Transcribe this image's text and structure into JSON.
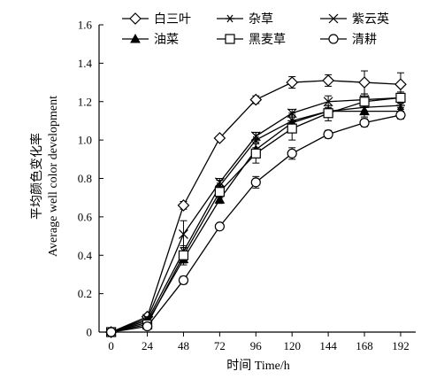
{
  "chart_data": {
    "type": "line",
    "x": [
      0,
      24,
      48,
      72,
      96,
      120,
      144,
      168,
      192
    ],
    "xlabel": "时间 Time/h",
    "ylabel": [
      "平均颜色变化率",
      "Average well color development"
    ],
    "xlim": [
      -8,
      202
    ],
    "ylim": [
      0,
      1.6
    ],
    "yticks": [
      "0",
      "0.2",
      "0.4",
      "0.6",
      "0.8",
      "1.0",
      "1.2",
      "1.4",
      "1.6"
    ],
    "xticks": [
      "0",
      "24",
      "48",
      "72",
      "96",
      "120",
      "144",
      "168",
      "192"
    ],
    "grid": false,
    "legend_position": "top",
    "series": [
      {
        "name": "白三叶",
        "marker": "diamond-open",
        "values": [
          0.0,
          0.08,
          0.66,
          1.01,
          1.21,
          1.3,
          1.31,
          1.3,
          1.29
        ],
        "err": [
          0.0,
          0.01,
          0.02,
          0.01,
          0.02,
          0.03,
          0.03,
          0.06,
          0.06
        ]
      },
      {
        "name": "杂草",
        "marker": "asterisk",
        "values": [
          0.0,
          0.06,
          0.42,
          0.76,
          1.0,
          1.1,
          1.15,
          1.17,
          1.18
        ],
        "err": [
          0.0,
          0.01,
          0.03,
          0.03,
          0.04,
          0.04,
          0.03,
          0.03,
          0.02
        ]
      },
      {
        "name": "紫云英",
        "marker": "x",
        "values": [
          0.0,
          0.07,
          0.51,
          0.78,
          1.02,
          1.14,
          1.2,
          1.21,
          1.22
        ],
        "err": [
          0.0,
          0.01,
          0.07,
          0.02,
          0.02,
          0.02,
          0.03,
          0.03,
          0.03
        ]
      },
      {
        "name": "油菜",
        "marker": "triangle-filled",
        "values": [
          0.0,
          0.05,
          0.38,
          0.69,
          0.95,
          1.09,
          1.15,
          1.15,
          1.15
        ],
        "err": [
          0.0,
          0.01,
          0.03,
          0.02,
          0.04,
          0.04,
          0.03,
          0.03,
          0.02
        ]
      },
      {
        "name": "黑麦草",
        "marker": "square-open",
        "values": [
          0.0,
          0.04,
          0.4,
          0.73,
          0.93,
          1.06,
          1.14,
          1.2,
          1.22
        ],
        "err": [
          0.0,
          0.01,
          0.04,
          0.03,
          0.05,
          0.06,
          0.04,
          0.03,
          0.02
        ]
      },
      {
        "name": "清耕",
        "marker": "circle-open",
        "values": [
          0.0,
          0.03,
          0.27,
          0.55,
          0.78,
          0.93,
          1.03,
          1.09,
          1.13
        ],
        "err": [
          0.0,
          0.01,
          0.02,
          0.01,
          0.03,
          0.03,
          0.02,
          0.02,
          0.02
        ]
      }
    ],
    "colors": {
      "line": "#000000",
      "background": "#ffffff"
    }
  }
}
